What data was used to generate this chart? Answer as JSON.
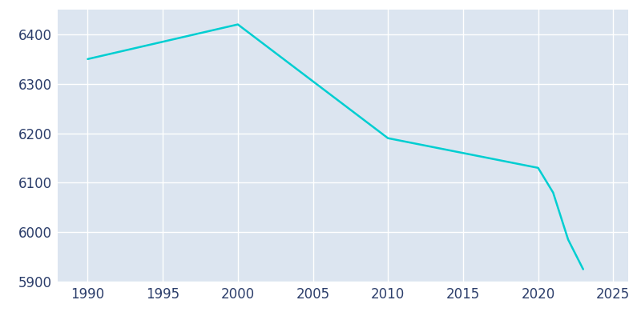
{
  "years": [
    1990,
    2000,
    2010,
    2020,
    2021,
    2022,
    2023
  ],
  "population": [
    6350,
    6420,
    6190,
    6130,
    6080,
    5985,
    5925
  ],
  "line_color": "#00CED1",
  "fig_bg_color": "#ffffff",
  "plot_bg_color": "#dce5f0",
  "grid_color": "#ffffff",
  "tick_color": "#2c3e6b",
  "ylim": [
    5900,
    6450
  ],
  "xlim": [
    1988,
    2026
  ],
  "yticks": [
    5900,
    6000,
    6100,
    6200,
    6300,
    6400
  ],
  "xticks": [
    1990,
    1995,
    2000,
    2005,
    2010,
    2015,
    2020,
    2025
  ],
  "linewidth": 1.8,
  "tick_labelsize": 12
}
